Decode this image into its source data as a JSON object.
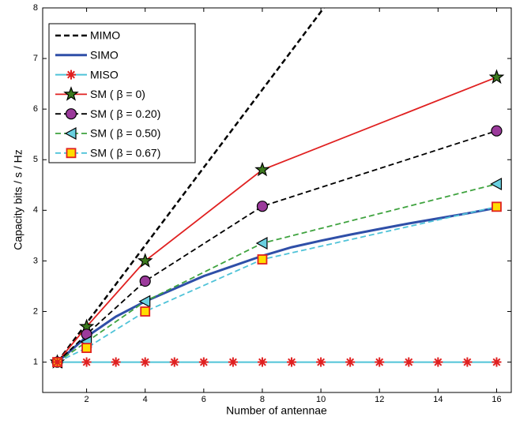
{
  "chart_data": {
    "type": "line",
    "xlabel": "Number of antennae",
    "ylabel": "Capacity  bits / s / Hz",
    "xlim": [
      0.5,
      16.5
    ],
    "ylim": [
      0.4,
      8
    ],
    "xticks": [
      2,
      4,
      6,
      8,
      10,
      12,
      14,
      16
    ],
    "yticks": [
      1,
      2,
      3,
      4,
      5,
      6,
      7,
      8
    ],
    "legend": "upper left",
    "series": [
      {
        "name": "MIMO",
        "color": "#000000",
        "dash": "dashed",
        "width": 2.5,
        "marker": "none",
        "x": [
          1,
          10.1
        ],
        "values": [
          1,
          8
        ]
      },
      {
        "name": "SIMO",
        "color": "#2f4fa8",
        "dash": "solid",
        "width": 3,
        "marker": "none",
        "x": [
          1,
          2,
          3,
          4,
          5,
          6,
          7,
          8,
          9,
          10,
          11,
          12,
          13,
          14,
          15,
          16
        ],
        "values": [
          1,
          1.5,
          1.9,
          2.2,
          2.45,
          2.7,
          2.9,
          3.1,
          3.27,
          3.4,
          3.52,
          3.63,
          3.74,
          3.84,
          3.94,
          4.05
        ]
      },
      {
        "name": "SM ( β = 0)",
        "color": "#e02020",
        "dash": "solid",
        "width": 1.8,
        "marker": "star",
        "marker_fill": "#3c7a1e",
        "marker_edge": "#000000",
        "x": [
          1,
          2,
          4,
          8,
          16
        ],
        "values": [
          1,
          1.7,
          3.0,
          4.8,
          6.63
        ]
      },
      {
        "name": "SM ( β = 0.20)",
        "color": "#000000",
        "dash": "dashed",
        "width": 1.8,
        "marker": "circle",
        "marker_fill": "#9b3a9b",
        "marker_edge": "#000000",
        "x": [
          1,
          2,
          4,
          8,
          16
        ],
        "values": [
          1,
          1.55,
          2.6,
          4.08,
          5.57
        ]
      },
      {
        "name": "SM ( β = 0.50)",
        "color": "#3fa33f",
        "dash": "dashed",
        "width": 1.8,
        "marker": "triangle-left",
        "marker_fill": "#6ad0e0",
        "marker_edge": "#000000",
        "x": [
          1,
          2,
          4,
          8,
          16
        ],
        "values": [
          1,
          1.4,
          2.2,
          3.35,
          4.52
        ]
      },
      {
        "name": "SM ( β = 0.67)",
        "color": "#4fc3d8",
        "dash": "dashed",
        "width": 1.8,
        "marker": "square",
        "marker_fill": "#ffdd00",
        "marker_edge": "#e02020",
        "x": [
          1,
          2,
          4,
          8,
          16
        ],
        "values": [
          1,
          1.28,
          2.0,
          3.03,
          4.07
        ]
      },
      {
        "name": "MISO",
        "color": "#4fc3d8",
        "dash": "solid",
        "width": 2,
        "marker": "asterisk",
        "marker_fill": "#e02020",
        "marker_edge": "#e02020",
        "x": [
          1,
          2,
          3,
          4,
          5,
          6,
          7,
          8,
          9,
          10,
          11,
          12,
          13,
          14,
          15,
          16
        ],
        "values": [
          1,
          1,
          1,
          1,
          1,
          1,
          1,
          1,
          1,
          1,
          1,
          1,
          1,
          1,
          1,
          1
        ]
      }
    ]
  }
}
